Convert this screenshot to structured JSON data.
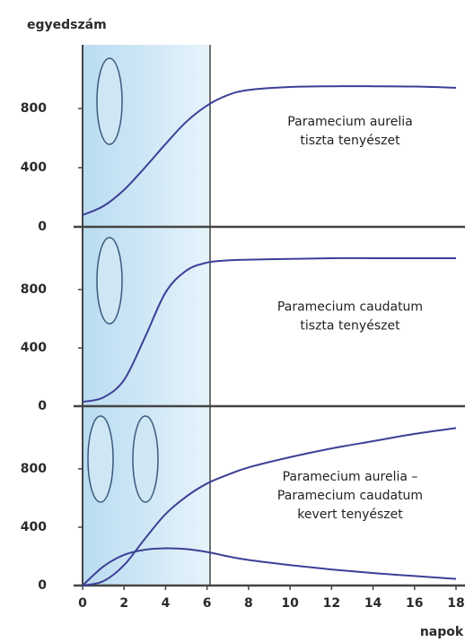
{
  "chart_data": [
    {
      "type": "line",
      "y_label": "egyedszám",
      "label": [
        "Paramecium aurelia",
        "tiszta tenyészet"
      ],
      "x": [
        0,
        1,
        2,
        3,
        4,
        5,
        6,
        7,
        8,
        10,
        12,
        14,
        16,
        18
      ],
      "xlim": [
        0,
        18
      ],
      "ylim": [
        0,
        1230
      ],
      "yticks": [
        0,
        400,
        800
      ],
      "series": [
        {
          "color": "#3d3f96",
          "values": [
            80,
            140,
            250,
            400,
            560,
            710,
            820,
            890,
            925,
            945,
            950,
            950,
            948,
            940
          ]
        }
      ]
    },
    {
      "type": "line",
      "label": [
        "Paramecium caudatum",
        "tiszta tenyészet"
      ],
      "x": [
        0,
        1,
        2,
        3,
        4,
        5,
        6,
        7,
        8,
        10,
        12,
        14,
        16,
        18
      ],
      "xlim": [
        0,
        18
      ],
      "ylim": [
        0,
        1230
      ],
      "yticks": [
        0,
        400,
        800
      ],
      "series": [
        {
          "color": "#3d3f96",
          "values": [
            30,
            60,
            180,
            470,
            780,
            930,
            985,
            1000,
            1005,
            1010,
            1015,
            1015,
            1015,
            1015
          ]
        }
      ]
    },
    {
      "type": "line",
      "label": [
        "Paramecium aurelia –",
        "Paramecium caudatum",
        "kevert tenyészet"
      ],
      "x_label": "napok",
      "x": [
        0,
        1,
        2,
        3,
        4,
        5,
        6,
        7,
        8,
        10,
        12,
        14,
        16,
        18
      ],
      "xlim": [
        0,
        18
      ],
      "ylim": [
        0,
        1230
      ],
      "yticks": [
        0,
        400,
        800
      ],
      "xticks": [
        0,
        2,
        4,
        6,
        8,
        10,
        12,
        14,
        16,
        18
      ],
      "series": [
        {
          "color": "#3d3f96",
          "values": [
            0,
            30,
            140,
            320,
            490,
            610,
            700,
            760,
            810,
            880,
            940,
            990,
            1040,
            1080
          ]
        },
        {
          "color": "#3d3f96",
          "values": [
            0,
            130,
            210,
            245,
            255,
            250,
            230,
            200,
            175,
            140,
            110,
            85,
            65,
            45
          ]
        }
      ]
    }
  ]
}
